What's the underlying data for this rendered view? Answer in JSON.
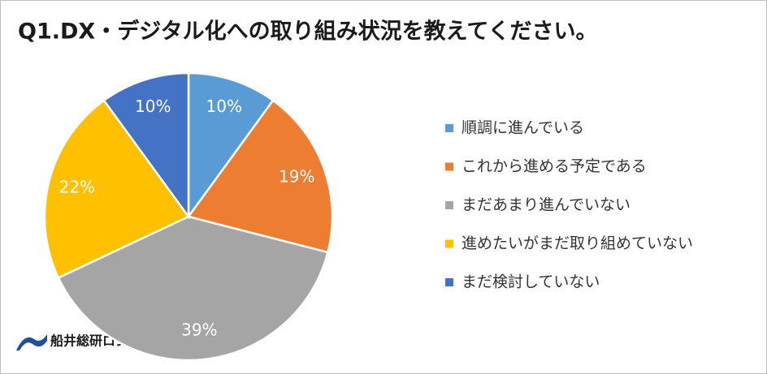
{
  "chart_data": {
    "type": "pie",
    "title": "Q1.DX・デジタル化への取り組み状況を教えてください。",
    "categories": [
      "順調に進んでいる",
      "これから進める予定である",
      "まだあまり進んでいない",
      "進めたいがまだ取り組めていない",
      "まだ検討していない"
    ],
    "values": [
      10,
      19,
      39,
      22,
      10
    ],
    "value_labels": [
      "10%",
      "19%",
      "39%",
      "22%",
      "10%"
    ],
    "colors": [
      "#5b9bd5",
      "#ed7d31",
      "#a5a5a5",
      "#ffc000",
      "#4472c4"
    ],
    "legend": "right",
    "source": "船井総研ロジ"
  }
}
